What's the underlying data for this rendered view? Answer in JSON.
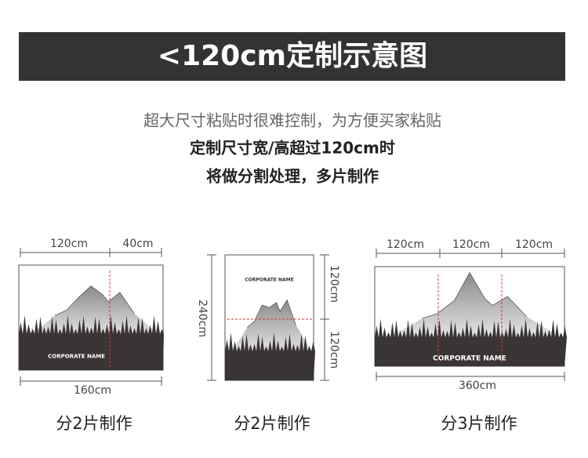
{
  "header": {
    "title": "<120cm定制示意图"
  },
  "intro": {
    "lines": [
      "超大尺寸粘贴时很难控制，为方便买家粘贴",
      "定制尺寸宽/高超过120cm时",
      "将做分割处理，多片制作"
    ]
  },
  "examples": [
    {
      "top_labels": [
        "120cm",
        "40cm"
      ],
      "bottom_label": "160cm",
      "brand": "CORPORATE NAME",
      "caption": "分2片制作"
    },
    {
      "left_label": "240cm",
      "right_labels": [
        "120cm",
        "120cm"
      ],
      "brand": "CORPORATE NAME",
      "caption": "分2片制作"
    },
    {
      "top_labels": [
        "120cm",
        "120cm",
        "120cm"
      ],
      "bottom_label": "360cm",
      "brand": "CORPORATE NAME",
      "caption": "分3片制作"
    }
  ]
}
